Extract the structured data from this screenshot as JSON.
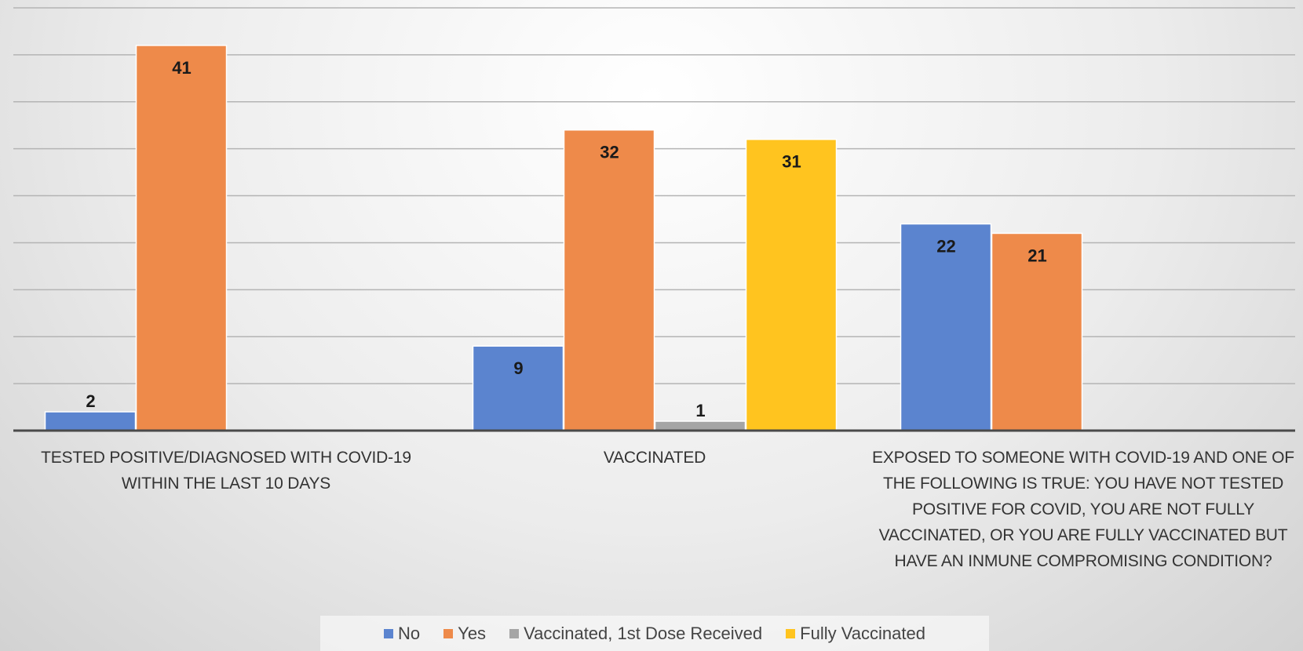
{
  "chart_data": {
    "type": "bar",
    "categories": [
      "TESTED POSITIVE/DIAGNOSED  WITH COVID-19 WITHIN THE LAST 10 DAYS",
      "VACCINATED",
      "EXPOSED TO SOMEONE WITH COVID-19 AND ONE OF THE FOLLOWING IS TRUE:  YOU HAVE NOT TESTED POSITIVE FOR COVID, YOU ARE NOT FULLY VACCINATED, OR YOU ARE FULLY VACCINATED BUT HAVE AN INMUNE COMPROMISING CONDITION?"
    ],
    "series": [
      {
        "name": "No",
        "color": "#5b84cf",
        "values": [
          2,
          9,
          22
        ]
      },
      {
        "name": "Yes",
        "color": "#ee8a4a",
        "values": [
          41,
          32,
          21
        ]
      },
      {
        "name": "Vaccinated, 1st Dose Received",
        "color": "#a5a5a5",
        "values": [
          null,
          1,
          null
        ]
      },
      {
        "name": "Fully Vaccinated",
        "color": "#ffc41f",
        "values": [
          null,
          31,
          null
        ]
      }
    ],
    "ylim": [
      0,
      45
    ],
    "grid": true,
    "legend": "bottom",
    "data_labels": true
  }
}
